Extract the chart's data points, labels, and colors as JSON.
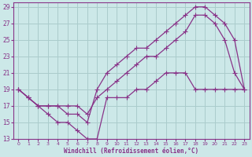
{
  "xlabel": "Windchill (Refroidissement éolien,°C)",
  "background_color": "#cce8e8",
  "grid_color": "#aacccc",
  "line_color": "#883388",
  "xlim": [
    -0.5,
    23.5
  ],
  "ylim": [
    13,
    29.5
  ],
  "xticks": [
    0,
    1,
    2,
    3,
    4,
    5,
    6,
    7,
    8,
    9,
    10,
    11,
    12,
    13,
    14,
    15,
    16,
    17,
    18,
    19,
    20,
    21,
    22,
    23
  ],
  "yticks": [
    13,
    15,
    17,
    19,
    21,
    23,
    25,
    27,
    29
  ],
  "line1_x": [
    0,
    1,
    2,
    3,
    4,
    5,
    6,
    7,
    8,
    9,
    10,
    11,
    12,
    13,
    14,
    15,
    16,
    17,
    18,
    19,
    20,
    21,
    22,
    23
  ],
  "line1_y": [
    19,
    18,
    17,
    16,
    15,
    15,
    14,
    13,
    13,
    18,
    18,
    18,
    19,
    19,
    20,
    21,
    21,
    21,
    19,
    19,
    19,
    19,
    19,
    19
  ],
  "line2_x": [
    0,
    1,
    2,
    3,
    4,
    5,
    6,
    7,
    8,
    9,
    10,
    11,
    12,
    13,
    14,
    15,
    16,
    17,
    18,
    19,
    20,
    21,
    22,
    23
  ],
  "line2_y": [
    19,
    18,
    17,
    17,
    17,
    16,
    16,
    15,
    19,
    21,
    22,
    23,
    24,
    24,
    25,
    26,
    27,
    28,
    29,
    29,
    28,
    27,
    25,
    19
  ],
  "line3_x": [
    0,
    1,
    2,
    3,
    4,
    5,
    6,
    7,
    8,
    9,
    10,
    11,
    12,
    13,
    14,
    15,
    16,
    17,
    18,
    19,
    20,
    21,
    22,
    23
  ],
  "line3_y": [
    19,
    18,
    17,
    17,
    17,
    17,
    17,
    16,
    18,
    19,
    20,
    21,
    22,
    23,
    23,
    24,
    25,
    26,
    28,
    28,
    27,
    25,
    21,
    19
  ]
}
